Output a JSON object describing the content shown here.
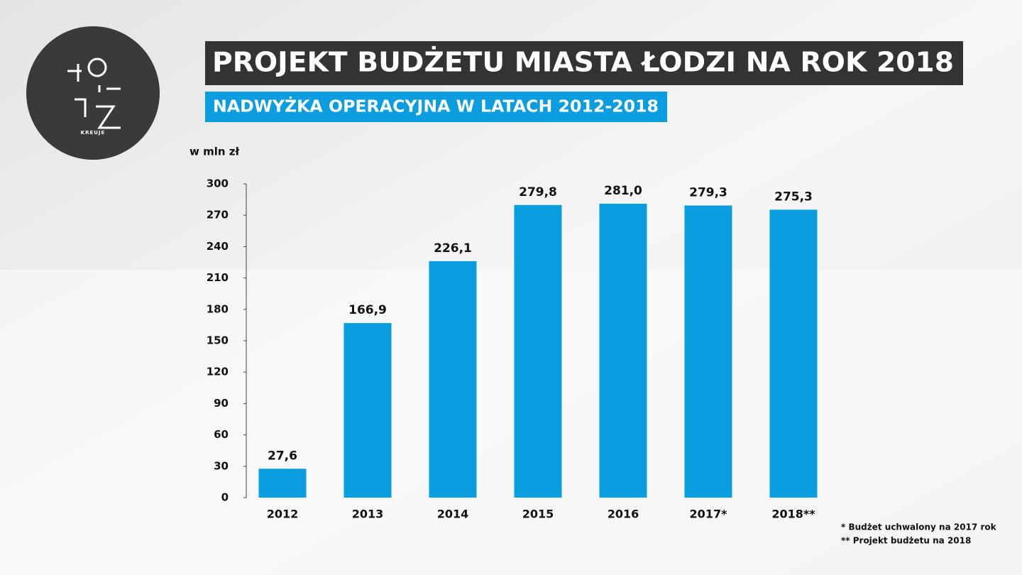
{
  "logo_text": "KREUJE",
  "chart_data": {
    "type": "bar",
    "title": "PROJEKT BUDŻETU MIASTA ŁODZI NA ROK 2018",
    "subtitle": "NADWYŻKA OPERACYJNA W LATACH 2012-2018",
    "y_axis_label": "w mln zł",
    "categories": [
      "2012",
      "2013",
      "2014",
      "2015",
      "2016",
      "2017*",
      "2018**"
    ],
    "values": [
      27.6,
      166.9,
      226.1,
      279.8,
      281.0,
      279.3,
      275.3
    ],
    "value_labels": [
      "27,6",
      "166,9",
      "226,1",
      "279,8",
      "281,0",
      "279,3",
      "275,3"
    ],
    "color": "#0a9de0",
    "ylim": [
      0,
      300
    ],
    "yticks": [
      0,
      30,
      60,
      90,
      120,
      150,
      180,
      210,
      240,
      270,
      300
    ],
    "footnotes": [
      "* Budżet uchwalony na 2017 rok",
      "** Projekt budżetu na 2018"
    ]
  }
}
